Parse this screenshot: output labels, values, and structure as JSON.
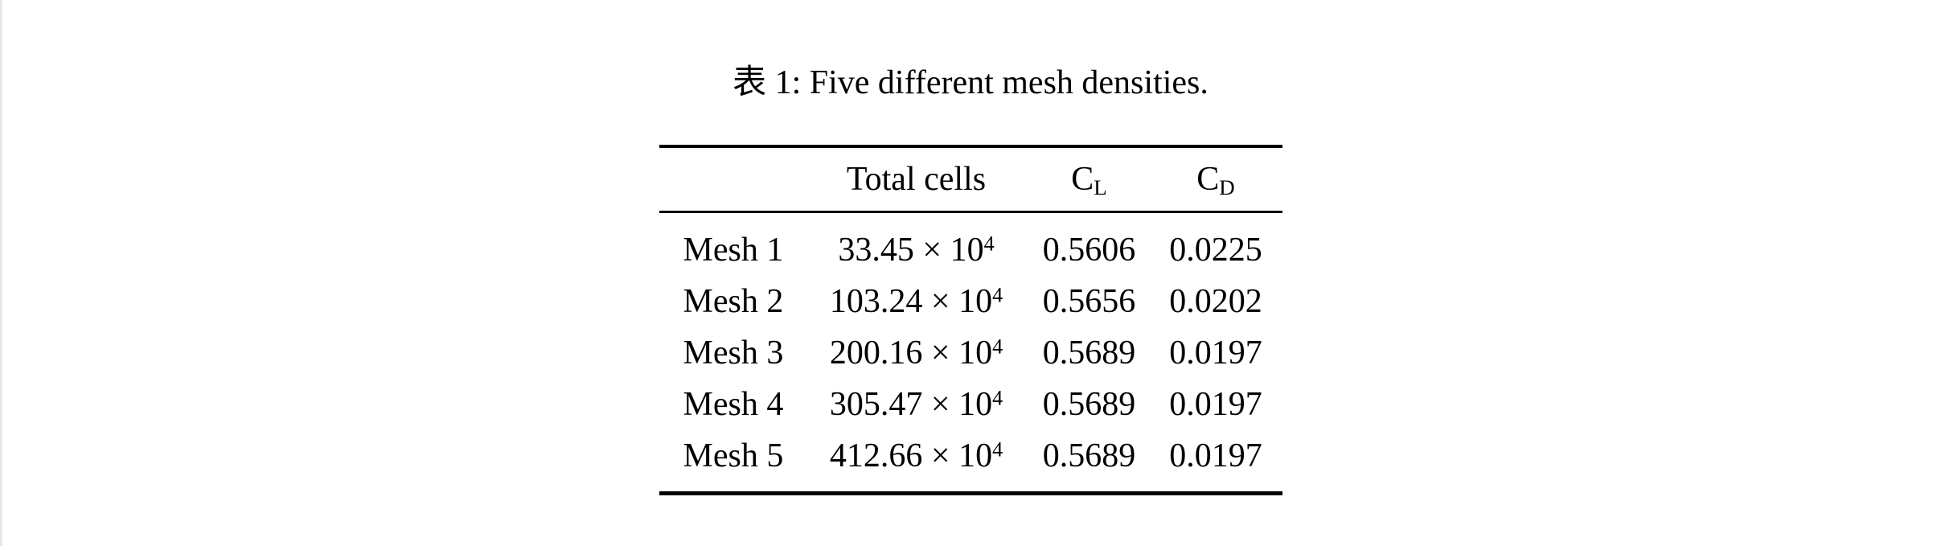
{
  "page": {
    "background": "#ffffff",
    "text_color": "#000000",
    "left_edge_strip_color": "#e7e7e7"
  },
  "caption": {
    "full_text": "表 1: Five different mesh densities."
  },
  "table": {
    "columns": [
      {
        "label": ""
      },
      {
        "label": "Total cells"
      },
      {
        "label": "C",
        "subscript": "L"
      },
      {
        "label": "C",
        "subscript": "D"
      }
    ],
    "rows": [
      {
        "label": "Mesh 1",
        "total_cells": {
          "mantissa": "33.45",
          "multiplier": "×",
          "base": "10",
          "exponent": "4"
        },
        "cl": "0.5606",
        "cd": "0.0225"
      },
      {
        "label": "Mesh 2",
        "total_cells": {
          "mantissa": "103.24",
          "multiplier": "×",
          "base": "10",
          "exponent": "4"
        },
        "cl": "0.5656",
        "cd": "0.0202"
      },
      {
        "label": "Mesh 3",
        "total_cells": {
          "mantissa": "200.16",
          "multiplier": "×",
          "base": "10",
          "exponent": "4"
        },
        "cl": "0.5689",
        "cd": "0.0197"
      },
      {
        "label": "Mesh 4",
        "total_cells": {
          "mantissa": "305.47",
          "multiplier": "×",
          "base": "10",
          "exponent": "4"
        },
        "cl": "0.5689",
        "cd": "0.0197"
      },
      {
        "label": "Mesh 5",
        "total_cells": {
          "mantissa": "412.66",
          "multiplier": "×",
          "base": "10",
          "exponent": "4"
        },
        "cl": "0.5689",
        "cd": "0.0197"
      }
    ]
  }
}
